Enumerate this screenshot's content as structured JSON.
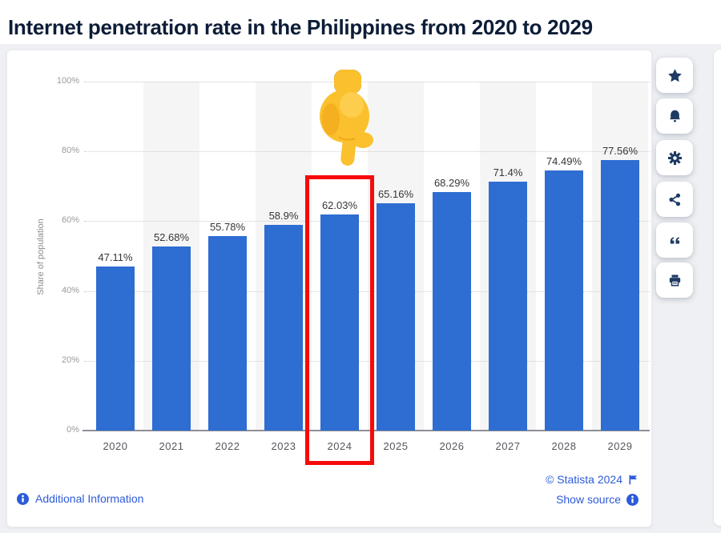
{
  "page": {
    "title": "Internet penetration rate in the Philippines from 2020 to 2029"
  },
  "chart_data": {
    "type": "bar",
    "categories": [
      "2020",
      "2021",
      "2022",
      "2023",
      "2024",
      "2025",
      "2026",
      "2027",
      "2028",
      "2029"
    ],
    "values": [
      47.11,
      52.68,
      55.78,
      58.9,
      62.03,
      65.16,
      68.29,
      71.4,
      74.49,
      77.56
    ],
    "value_labels": [
      "47.11%",
      "52.68%",
      "55.78%",
      "58.9%",
      "62.03%",
      "65.16%",
      "68.29%",
      "71.4%",
      "74.49%",
      "77.56%"
    ],
    "title": "Internet penetration rate in the Philippines from 2020 to 2029",
    "xlabel": "",
    "ylabel": "Share of population",
    "ylim": [
      0,
      100
    ],
    "yticks": [
      0,
      20,
      40,
      60,
      80,
      100
    ],
    "ytick_labels": [
      "0%",
      "20%",
      "40%",
      "60%",
      "80%",
      "100%"
    ],
    "grid": "horizontal-dotted",
    "legend": "none",
    "bar_color": "#2e6dd2",
    "alt_band_color": "#f5f5f6",
    "highlighted_category": "2024",
    "highlight_box_color": "#f60a0a",
    "annotation": "pointing-down-finger-emoji above highlighted 2024 bar"
  },
  "toolbar": {
    "buttons": [
      {
        "id": "favorite",
        "icon": "star-icon"
      },
      {
        "id": "alerts",
        "icon": "bell-icon"
      },
      {
        "id": "settings",
        "icon": "gear-icon"
      },
      {
        "id": "share",
        "icon": "share-icon"
      },
      {
        "id": "cite",
        "icon": "quote-icon"
      },
      {
        "id": "print",
        "icon": "printer-icon"
      }
    ]
  },
  "footer": {
    "additional_information": "Additional Information",
    "copyright": "© Statista 2024",
    "show_source": "Show source"
  },
  "colors": {
    "title_text": "#0d1d38",
    "link_blue": "#2d5bd9",
    "icon_navy": "#1e3a63",
    "page_background": "#eef0f3",
    "card_background": "#ffffff"
  }
}
